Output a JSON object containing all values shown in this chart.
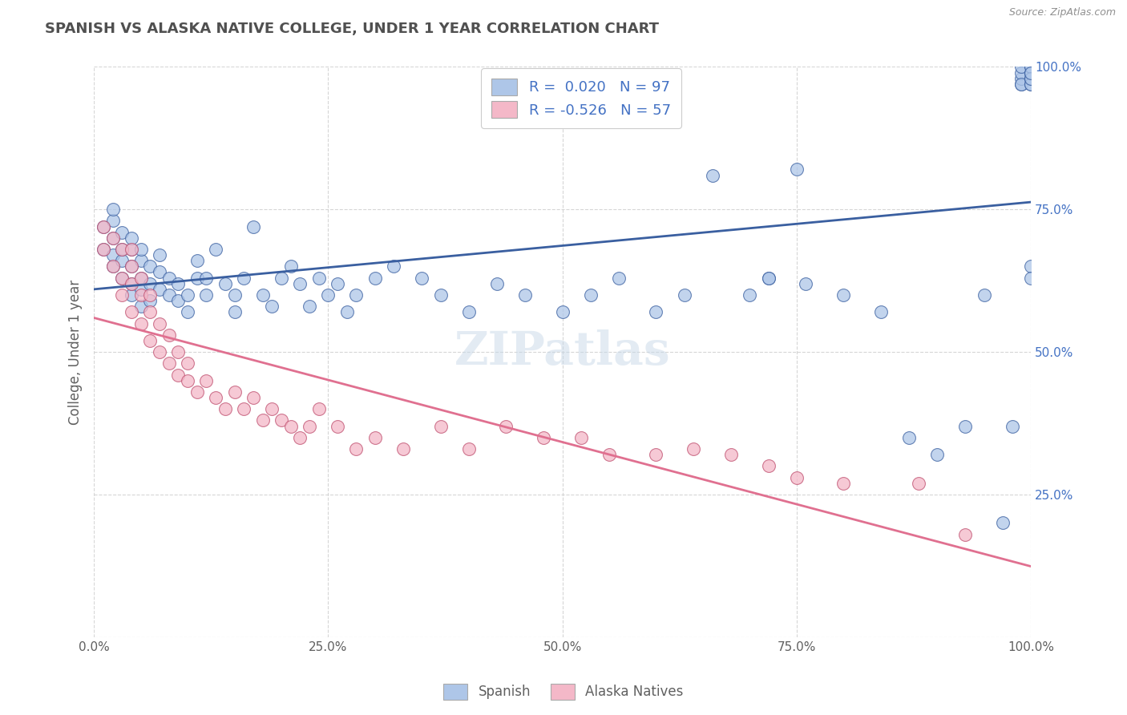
{
  "title": "SPANISH VS ALASKA NATIVE COLLEGE, UNDER 1 YEAR CORRELATION CHART",
  "source": "Source: ZipAtlas.com",
  "ylabel": "College, Under 1 year",
  "xlim": [
    0.0,
    1.0
  ],
  "ylim": [
    0.0,
    1.0
  ],
  "spanish_color": "#aec6e8",
  "alaska_color": "#f4b8c8",
  "trend_spanish_color": "#3a5fa0",
  "trend_alaska_color": "#e07090",
  "background_color": "#ffffff",
  "grid_color": "#cccccc",
  "title_color": "#505050",
  "R_spanish": 0.02,
  "N_spanish": 97,
  "R_alaska": -0.526,
  "N_alaska": 57,
  "spanish_x": [
    0.01,
    0.01,
    0.02,
    0.02,
    0.02,
    0.02,
    0.02,
    0.03,
    0.03,
    0.03,
    0.03,
    0.04,
    0.04,
    0.04,
    0.04,
    0.04,
    0.05,
    0.05,
    0.05,
    0.05,
    0.05,
    0.06,
    0.06,
    0.06,
    0.07,
    0.07,
    0.07,
    0.08,
    0.08,
    0.09,
    0.09,
    0.1,
    0.1,
    0.11,
    0.11,
    0.12,
    0.12,
    0.13,
    0.14,
    0.15,
    0.15,
    0.16,
    0.17,
    0.18,
    0.19,
    0.2,
    0.21,
    0.22,
    0.23,
    0.24,
    0.25,
    0.26,
    0.27,
    0.28,
    0.3,
    0.32,
    0.35,
    0.37,
    0.4,
    0.43,
    0.46,
    0.5,
    0.53,
    0.56,
    0.6,
    0.63,
    0.66,
    0.7,
    0.72,
    0.75,
    0.72,
    0.76,
    0.8,
    0.84,
    0.87,
    0.9,
    0.93,
    0.95,
    0.97,
    0.98,
    0.99,
    0.99,
    0.99,
    0.99,
    0.99,
    1.0,
    1.0,
    1.0,
    1.0,
    1.0,
    1.0,
    1.0,
    1.0,
    1.0,
    1.0,
    1.0,
    1.0
  ],
  "spanish_y": [
    0.68,
    0.72,
    0.65,
    0.67,
    0.7,
    0.73,
    0.75,
    0.63,
    0.66,
    0.68,
    0.71,
    0.6,
    0.62,
    0.65,
    0.68,
    0.7,
    0.58,
    0.61,
    0.63,
    0.66,
    0.68,
    0.59,
    0.62,
    0.65,
    0.61,
    0.64,
    0.67,
    0.6,
    0.63,
    0.59,
    0.62,
    0.57,
    0.6,
    0.63,
    0.66,
    0.6,
    0.63,
    0.68,
    0.62,
    0.57,
    0.6,
    0.63,
    0.72,
    0.6,
    0.58,
    0.63,
    0.65,
    0.62,
    0.58,
    0.63,
    0.6,
    0.62,
    0.57,
    0.6,
    0.63,
    0.65,
    0.63,
    0.6,
    0.57,
    0.62,
    0.6,
    0.57,
    0.6,
    0.63,
    0.57,
    0.6,
    0.81,
    0.6,
    0.63,
    0.82,
    0.63,
    0.62,
    0.6,
    0.57,
    0.35,
    0.32,
    0.37,
    0.6,
    0.2,
    0.37,
    0.97,
    0.98,
    0.99,
    1.0,
    0.97,
    0.97,
    0.98,
    0.98,
    0.99,
    0.99,
    1.0,
    1.0,
    0.97,
    0.98,
    0.99,
    0.65,
    0.63
  ],
  "alaska_x": [
    0.01,
    0.01,
    0.02,
    0.02,
    0.03,
    0.03,
    0.03,
    0.04,
    0.04,
    0.04,
    0.04,
    0.05,
    0.05,
    0.05,
    0.06,
    0.06,
    0.06,
    0.07,
    0.07,
    0.08,
    0.08,
    0.09,
    0.09,
    0.1,
    0.1,
    0.11,
    0.12,
    0.13,
    0.14,
    0.15,
    0.16,
    0.17,
    0.18,
    0.19,
    0.2,
    0.21,
    0.22,
    0.23,
    0.24,
    0.26,
    0.28,
    0.3,
    0.33,
    0.37,
    0.4,
    0.44,
    0.48,
    0.52,
    0.55,
    0.6,
    0.64,
    0.68,
    0.72,
    0.75,
    0.8,
    0.88,
    0.93
  ],
  "alaska_y": [
    0.68,
    0.72,
    0.65,
    0.7,
    0.6,
    0.63,
    0.68,
    0.57,
    0.62,
    0.65,
    0.68,
    0.55,
    0.6,
    0.63,
    0.52,
    0.57,
    0.6,
    0.5,
    0.55,
    0.48,
    0.53,
    0.46,
    0.5,
    0.45,
    0.48,
    0.43,
    0.45,
    0.42,
    0.4,
    0.43,
    0.4,
    0.42,
    0.38,
    0.4,
    0.38,
    0.37,
    0.35,
    0.37,
    0.4,
    0.37,
    0.33,
    0.35,
    0.33,
    0.37,
    0.33,
    0.37,
    0.35,
    0.35,
    0.32,
    0.32,
    0.33,
    0.32,
    0.3,
    0.28,
    0.27,
    0.27,
    0.18
  ]
}
